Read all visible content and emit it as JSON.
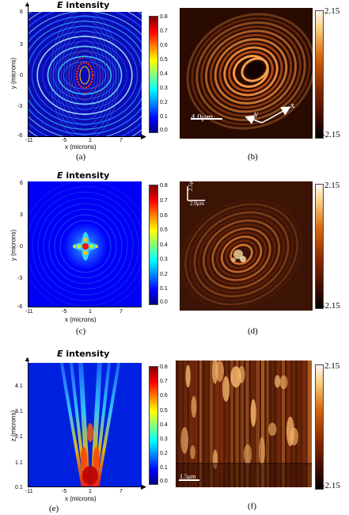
{
  "panels": {
    "a": {
      "title_e": "E",
      "title_rest": " intensity",
      "xlabel": "x (microns)",
      "ylabel": "y (microns)",
      "xticks": [
        "-11",
        "-5",
        "1",
        "7"
      ],
      "yticks": [
        "6",
        "3",
        "0",
        "-3",
        "-6"
      ],
      "cbticks": [
        "0.8",
        "0.7",
        "0.6",
        "0.5",
        "0.4",
        "0.3",
        "0.2",
        "0.1",
        "0.0"
      ],
      "caption": "(a)"
    },
    "b": {
      "cb_max": "2.15",
      "cb_min": "-2.15",
      "scalebar": "4.0μm",
      "axis_x": "x",
      "axis_y": "y",
      "caption": "(b)"
    },
    "c": {
      "title_e": "E",
      "title_rest": " intensity",
      "xlabel": "x (microns)",
      "ylabel": "y (microns)",
      "xticks": [
        "-11",
        "-5",
        "1",
        "7"
      ],
      "yticks": [
        "6",
        "3",
        "0",
        "-3",
        "-6"
      ],
      "cbticks": [
        "0.8",
        "0.7",
        "0.6",
        "0.5",
        "0.4",
        "0.3",
        "0.2",
        "0.1",
        "0.0"
      ],
      "caption": "(c)"
    },
    "d": {
      "cb_max": "2.15",
      "cb_min": "-2.15",
      "scale_v": "2.1μm",
      "scale_h": "2.0μm",
      "caption": "(d)"
    },
    "e": {
      "title_e": "E",
      "title_rest": " intensity",
      "xlabel": "x (microns)",
      "ylabel": "z (microns)",
      "xticks": [
        "-11",
        "-5",
        "1",
        "7"
      ],
      "yticks": [
        "4.1",
        "3.1",
        "2.1",
        "1.1",
        "0.1"
      ],
      "cbticks": [
        "0.8",
        "0.7",
        "0.6",
        "0.5",
        "0.4",
        "0.3",
        "0.2",
        "0.1",
        "0.0"
      ],
      "caption": "(e)"
    },
    "f": {
      "cb_max": "2.15",
      "cb_min": "-2.15",
      "scalebar": "1.5μm",
      "caption": "(f)"
    }
  }
}
